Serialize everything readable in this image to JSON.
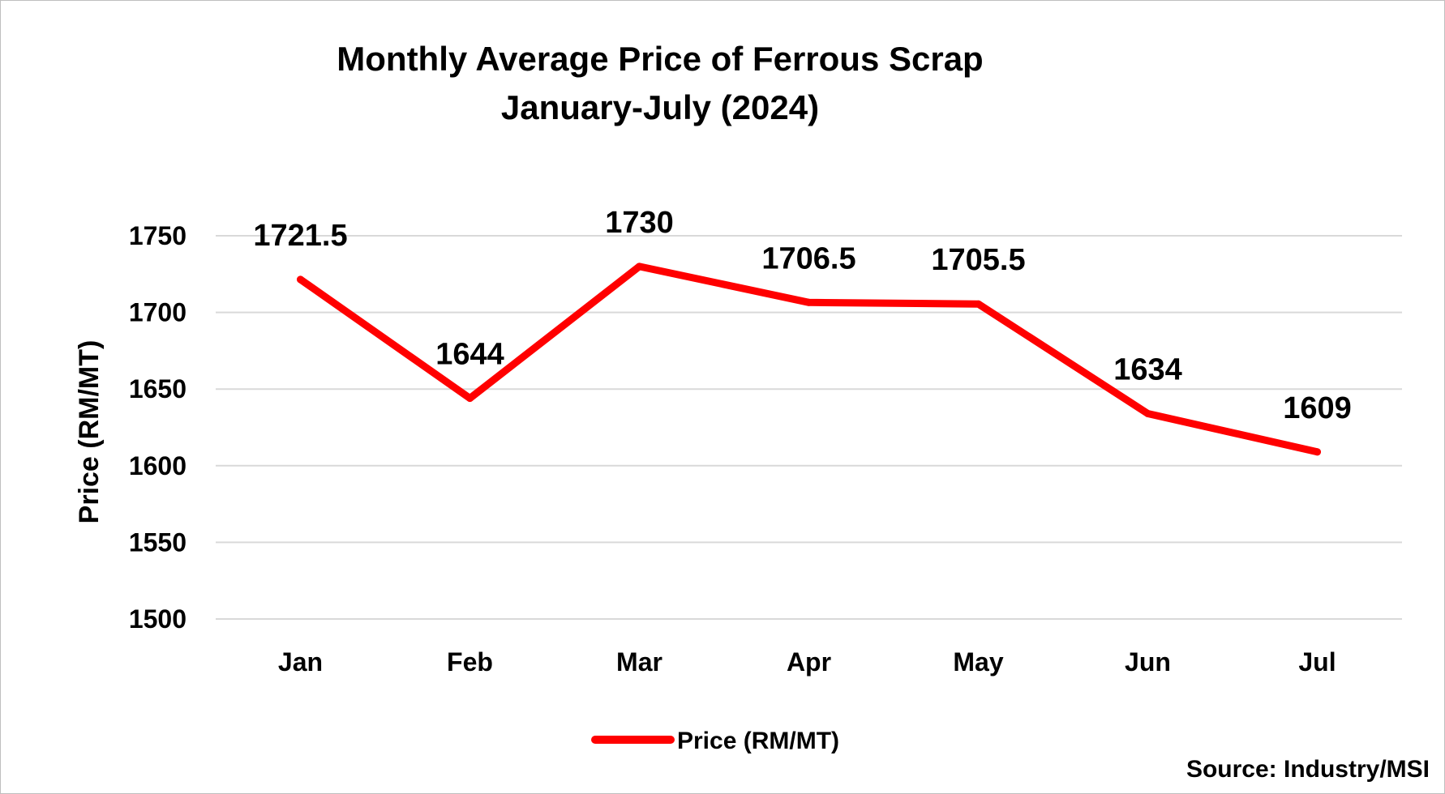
{
  "chart_data": {
    "type": "line",
    "title": "Monthly Average Price of Ferrous Scrap",
    "subtitle": "January-July (2024)",
    "xlabel": "",
    "ylabel": "Price (RM/MT)",
    "categories": [
      "Jan",
      "Feb",
      "Mar",
      "Apr",
      "May",
      "Jun",
      "Jul"
    ],
    "series": [
      {
        "name": "Price (RM/MT)",
        "values": [
          1721.5,
          1644,
          1730,
          1706.5,
          1705.5,
          1634,
          1609
        ],
        "labels": [
          "1721.5",
          "1644",
          "1730",
          "1706.5",
          "1705.5",
          "1634",
          "1609"
        ],
        "color": "#ff0000"
      }
    ],
    "ylim": [
      1500,
      1750
    ],
    "yticks": [
      "1500",
      "1550",
      "1600",
      "1650",
      "1700",
      "1750"
    ],
    "grid": true,
    "legend_position": "bottom"
  },
  "source": "Source: Industry/MSI"
}
